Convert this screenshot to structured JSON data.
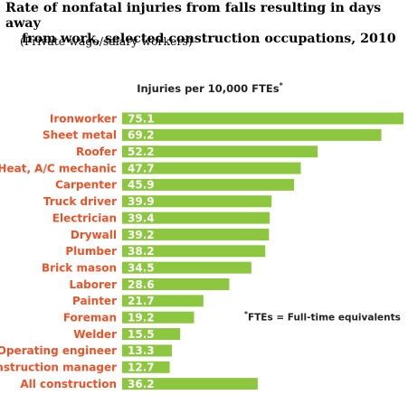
{
  "chart_data": {
    "type": "bar",
    "orientation": "horizontal",
    "title_line1": "Rate of nonfatal injuries from falls resulting in days away",
    "title_line2": "from work, selected construction occupations, 2010",
    "subtitle": "(Private wage/salary workers)",
    "value_axis_label": "Injuries per 10,000 FTEs",
    "value_axis_label_marker": "*",
    "footnote_marker": "*",
    "footnote": "FTEs = Full-time equivalents",
    "categories": [
      "Ironworker",
      "Sheet metal",
      "Roofer",
      "Heat, A/C mechanic",
      "Carpenter",
      "Truck driver",
      "Electrician",
      "Drywall",
      "Plumber",
      "Brick mason",
      "Laborer",
      "Painter",
      "Foreman",
      "Welder",
      "Operating engineer",
      "Construction manager",
      "All construction"
    ],
    "values": [
      75.1,
      69.2,
      52.2,
      47.7,
      45.9,
      39.9,
      39.4,
      39.2,
      38.2,
      34.5,
      28.6,
      21.7,
      19.2,
      15.5,
      13.3,
      12.7,
      36.2
    ],
    "value_labels": [
      "75.1",
      "69.2",
      "52.2",
      "47.7",
      "45.9",
      "39.9",
      "39.4",
      "39.2",
      "38.2",
      "34.5",
      "28.6",
      "21.7",
      "19.2",
      "15.5",
      "13.3",
      "12.7",
      "36.2"
    ],
    "xlim": [
      0,
      75.1
    ],
    "grid": false,
    "legend": "none",
    "colors": {
      "bar": "#8dc63f",
      "category_label": "#e8542a",
      "value_label": "#ffffff",
      "title": "#000000"
    }
  }
}
